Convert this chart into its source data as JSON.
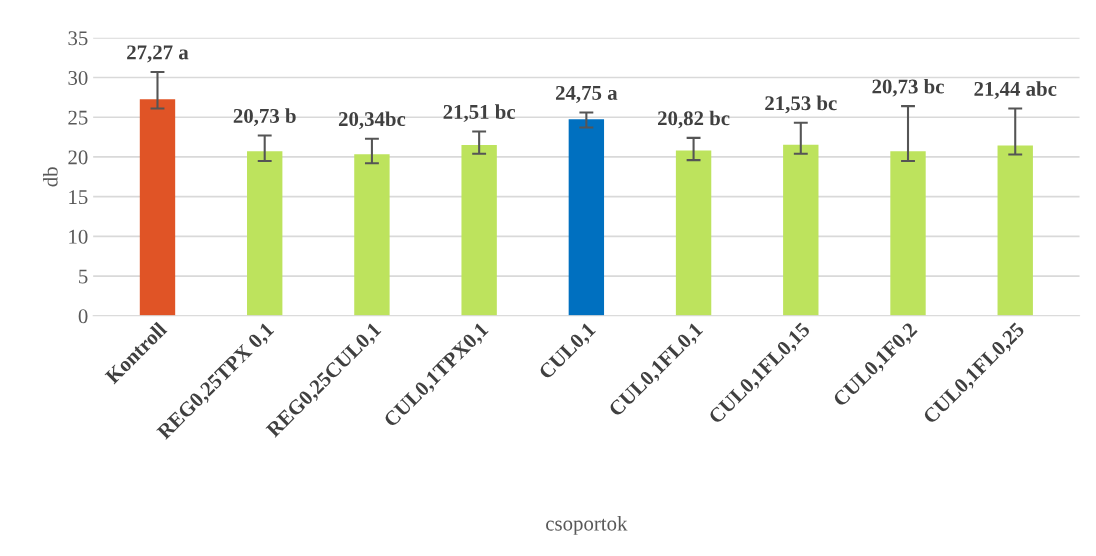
{
  "chart_data": {
    "type": "bar",
    "xlabel": "csoportok",
    "ylabel": "db",
    "categories": [
      "Kontroll",
      "REG0,25TPX 0,1",
      "REG0,25CUL0,1",
      "CUL0,1TPX0,1",
      "CUL0,1",
      "CUL0,1FL0,1",
      "CUL0,1FL0,15",
      "CUL0,1F0,2",
      "CUL0,1FL0,25"
    ],
    "values": [
      27.27,
      20.73,
      20.34,
      21.51,
      24.75,
      20.82,
      21.53,
      20.73,
      21.44
    ],
    "colors": [
      "#e05426",
      "#bde35d",
      "#bde35d",
      "#bde35d",
      "#0070c0",
      "#bde35d",
      "#bde35d",
      "#bde35d",
      "#bde35d"
    ],
    "errors": [
      [
        26.1,
        30.7
      ],
      [
        19.5,
        22.7
      ],
      [
        19.2,
        22.3
      ],
      [
        20.4,
        23.2
      ],
      [
        23.7,
        25.6
      ],
      [
        19.6,
        22.4
      ],
      [
        20.4,
        24.3
      ],
      [
        19.5,
        26.4
      ],
      [
        20.3,
        26.1
      ]
    ],
    "value_labels": [
      "27,27 a",
      "20,73 b",
      "20,34bc",
      "21,51 bc",
      "24,75 a",
      "20,82 bc",
      "21,53 bc",
      "20,73 bc",
      "21,44 abc"
    ],
    "ylim": [
      0,
      35
    ],
    "yticks": [
      0,
      5,
      10,
      15,
      20,
      25,
      30,
      35
    ],
    "grid": "y",
    "legend": false
  }
}
